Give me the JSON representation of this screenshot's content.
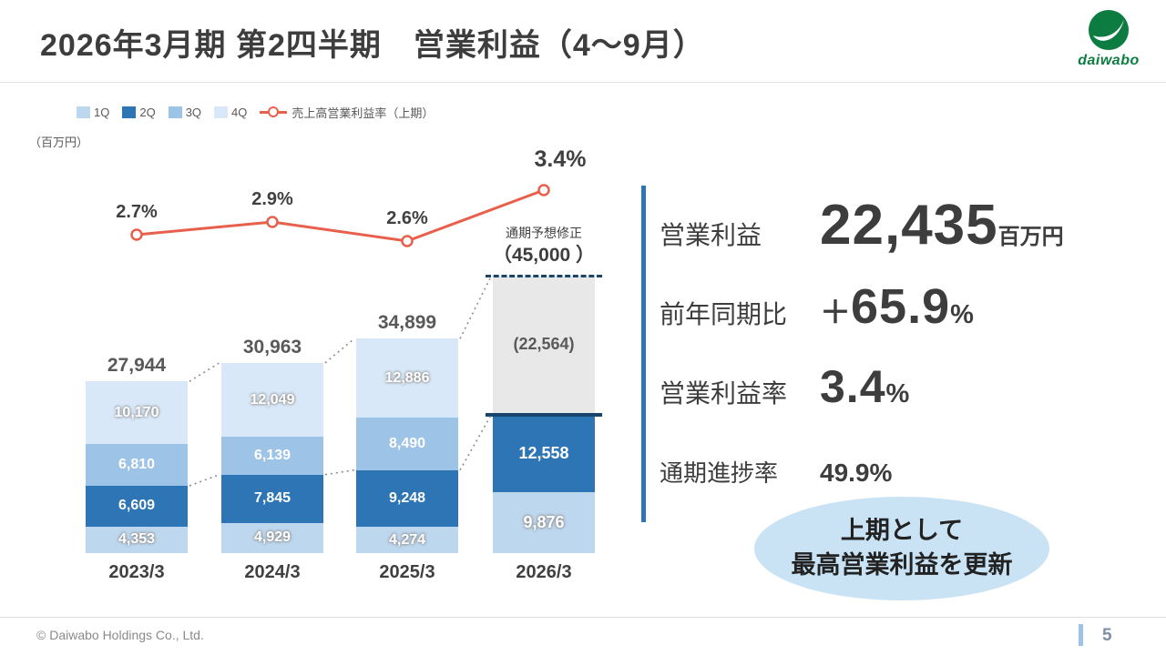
{
  "slide": {
    "title": "2026年3月期 第2四半期　営業利益（4～9月）",
    "footer": "© Daiwabo Holdings Co., Ltd.",
    "page_number": "5",
    "logo_text": "daiwabo"
  },
  "colors": {
    "q1": "#bdd7ee",
    "q2": "#2e75b6",
    "q3": "#9dc3e6",
    "q4": "#d9e8f8",
    "line": "#e8604c",
    "forecast_fill": "#e8e8e8",
    "navy": "#17456b",
    "accent": "#2e75b6",
    "highlight": "#c9e3f5",
    "logo_green": "#0c7c40"
  },
  "legend": {
    "items": [
      {
        "label": "1Q"
      },
      {
        "label": "2Q"
      },
      {
        "label": "3Q"
      },
      {
        "label": "4Q"
      }
    ],
    "line_label": "売上高営業利益率（上期）"
  },
  "chart_data": {
    "type": "bar",
    "subtype": "stacked-bar-with-line",
    "unit_label": "（百万円）",
    "categories": [
      "2023/3",
      "2024/3",
      "2025/3",
      "2026/3"
    ],
    "series": [
      {
        "name": "1Q",
        "values": [
          4353,
          4929,
          4274,
          9876
        ]
      },
      {
        "name": "2Q",
        "values": [
          6609,
          7845,
          9248,
          12558
        ]
      },
      {
        "name": "3Q",
        "values": [
          6810,
          6139,
          8490,
          null
        ]
      },
      {
        "name": "4Q",
        "values": [
          10170,
          12049,
          12886,
          null
        ]
      }
    ],
    "totals": [
      27944,
      30963,
      34899,
      null
    ],
    "forecast": {
      "label": "通期予想修正",
      "value_label": "（45,000 ）",
      "value": 45000,
      "remainder_label": "(22,564)",
      "remainder": 22564
    },
    "line_series": {
      "name": "売上高営業利益率（上期）",
      "values": [
        2.7,
        2.9,
        2.6,
        3.4
      ],
      "labels": [
        "2.7%",
        "2.9%",
        "2.6%",
        "3.4%"
      ]
    },
    "legend_position": "top",
    "grid": false
  },
  "kpis": [
    {
      "label": "営業利益",
      "value": "22,435",
      "suffix": "百万円"
    },
    {
      "label": "前年同期比",
      "prefix": "＋",
      "value": "65.9",
      "suffix": "%"
    },
    {
      "label": "営業利益率",
      "value": "3.4",
      "suffix": "%"
    },
    {
      "label": "通期進捗率",
      "value": "49.9%"
    }
  ],
  "highlight": {
    "line1": "上期として",
    "line2": "最高営業利益を更新"
  }
}
